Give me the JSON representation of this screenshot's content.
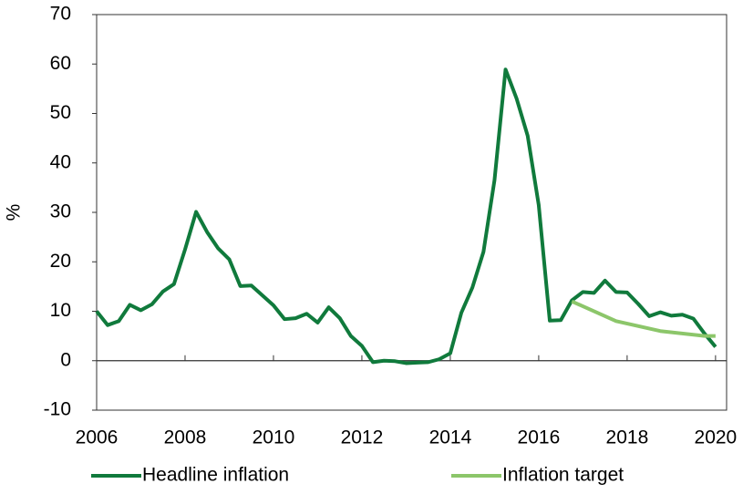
{
  "chart_data": {
    "type": "line",
    "ylabel": "%",
    "xlim": [
      2006,
      2020.25
    ],
    "ylim": [
      -10,
      70
    ],
    "xticks": [
      2006,
      2008,
      2010,
      2012,
      2014,
      2016,
      2018,
      2020
    ],
    "yticks": [
      -10,
      0,
      10,
      20,
      30,
      40,
      50,
      60,
      70
    ],
    "series": [
      {
        "name": "Headline inflation",
        "color": "#107a3c",
        "x": [
          2006,
          2006.25,
          2006.5,
          2006.75,
          2007,
          2007.25,
          2007.5,
          2007.75,
          2008,
          2008.25,
          2008.5,
          2008.75,
          2009,
          2009.25,
          2009.5,
          2009.75,
          2010,
          2010.25,
          2010.5,
          2010.75,
          2011,
          2011.25,
          2011.5,
          2011.75,
          2012,
          2012.25,
          2012.5,
          2012.75,
          2013,
          2013.25,
          2013.5,
          2013.75,
          2014,
          2014.25,
          2014.5,
          2014.75,
          2015,
          2015.25,
          2015.5,
          2015.75,
          2016,
          2016.25,
          2016.5,
          2016.75,
          2017,
          2017.25,
          2017.5,
          2017.75,
          2018,
          2018.25,
          2018.5,
          2018.75,
          2019,
          2019.25,
          2019.5,
          2019.75,
          2020
        ],
        "values": [
          10,
          7.2,
          8,
          11.3,
          10.2,
          11.4,
          14,
          15.5,
          22.5,
          30.1,
          26,
          22.7,
          20.5,
          15.1,
          15.2,
          13.2,
          11.2,
          8.4,
          8.6,
          9.5,
          7.7,
          10.8,
          8.6,
          5,
          3,
          -0.3,
          0,
          -0.1,
          -0.5,
          -0.4,
          -0.3,
          0.3,
          1.5,
          9.7,
          14.8,
          22,
          36.5,
          58.9,
          53,
          45.5,
          31.5,
          8.1,
          8.2,
          12.2,
          13.9,
          13.7,
          16.2,
          13.9,
          13.8,
          11.5,
          9,
          9.8,
          9.1,
          9.3,
          8.5,
          5.5,
          2.8
        ]
      },
      {
        "name": "Inflation target",
        "color": "#8cc66a",
        "x": [
          2016.75,
          2017.75,
          2018.75,
          2019.75,
          2020
        ],
        "values": [
          12,
          8,
          6,
          5,
          5
        ]
      }
    ]
  }
}
